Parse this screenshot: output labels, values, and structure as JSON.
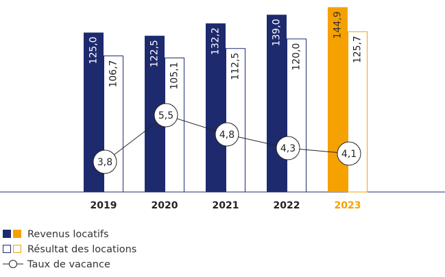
{
  "chart_data": {
    "type": "bar",
    "categories": [
      "2019",
      "2020",
      "2021",
      "2022",
      "2023"
    ],
    "category_colors": [
      "#222222",
      "#222222",
      "#222222",
      "#222222",
      "#f5a100"
    ],
    "ylim": [
      0,
      150
    ],
    "y2lim": [
      2.7,
      9.675
    ],
    "series": [
      {
        "name": "Revenus locatifs",
        "style": "filled",
        "colors": [
          "#1e2a6e",
          "#1e2a6e",
          "#1e2a6e",
          "#1e2a6e",
          "#f5a100"
        ],
        "values": [
          125.0,
          122.5,
          132.2,
          139.0,
          144.9
        ],
        "value_labels": [
          "125,0",
          "122,5",
          "132,2",
          "139,0",
          "144,9"
        ]
      },
      {
        "name": "Résultat des locations",
        "style": "outline",
        "colors": [
          "#1e2a6e",
          "#1e2a6e",
          "#1e2a6e",
          "#1e2a6e",
          "#f5a100"
        ],
        "values": [
          106.7,
          105.1,
          112.5,
          120.0,
          125.7
        ],
        "value_labels": [
          "106,7",
          "105,1",
          "112,5",
          "120,0",
          "125,7"
        ]
      },
      {
        "name": "Taux de vacance",
        "type": "line",
        "axis": "y2",
        "color": "#222222",
        "values": [
          3.8,
          5.5,
          4.8,
          4.3,
          4.1
        ],
        "value_labels": [
          "3,8",
          "5,5",
          "4,8",
          "4,3",
          "4,1"
        ]
      }
    ]
  }
}
